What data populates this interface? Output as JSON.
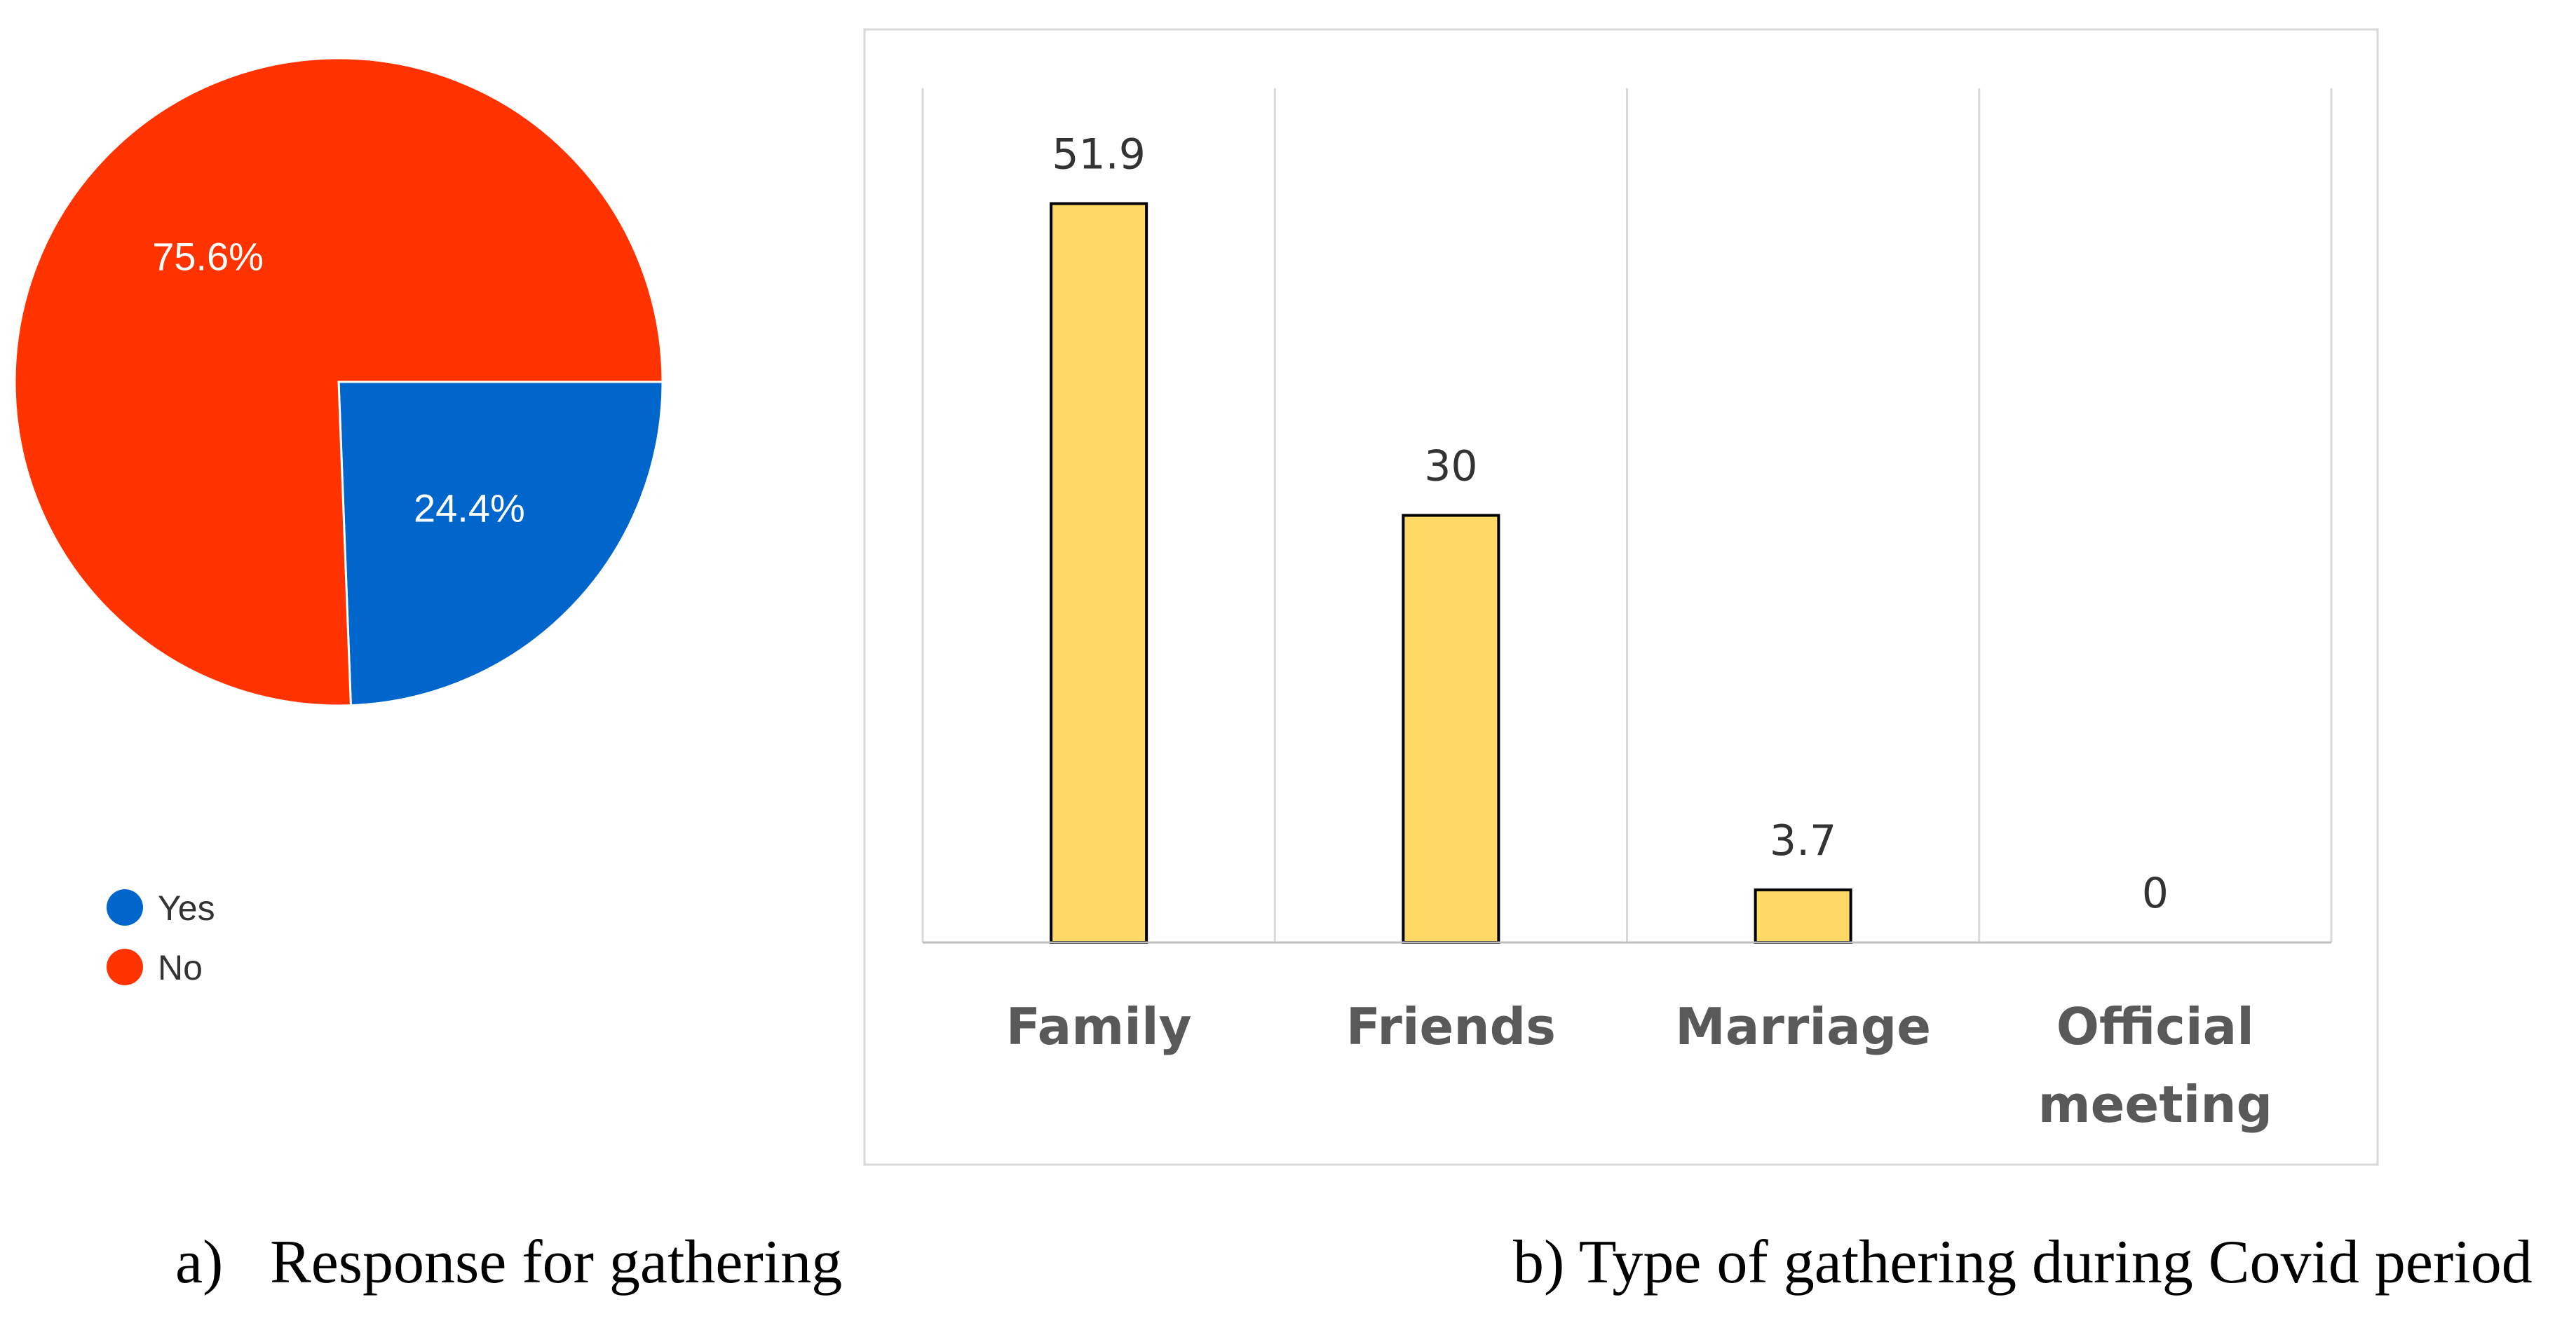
{
  "chart_data": [
    {
      "type": "pie",
      "title": "Response for gathering",
      "caption_prefix": "a)",
      "slices": [
        {
          "label": "Yes",
          "value": 24.4,
          "display": "24.4%",
          "color": "#0066cc"
        },
        {
          "label": "No",
          "value": 75.6,
          "display": "75.6%",
          "color": "#ff3300"
        }
      ],
      "legend": [
        "Yes",
        "No"
      ]
    },
    {
      "type": "bar",
      "title": "b) Type of gathering during Covid period",
      "categories": [
        "Family",
        "Friends",
        "Marriage",
        "Official meeting"
      ],
      "category_lines": [
        [
          "Family"
        ],
        [
          "Friends"
        ],
        [
          "Marriage"
        ],
        [
          "Official",
          "meeting"
        ]
      ],
      "values": [
        51.9,
        30,
        3.7,
        0
      ],
      "value_labels": [
        "51.9",
        "30",
        "3.7",
        "0"
      ],
      "ylim": [
        0,
        60
      ],
      "bar_color": "#ffd966",
      "xlabel": "",
      "ylabel": ""
    }
  ]
}
